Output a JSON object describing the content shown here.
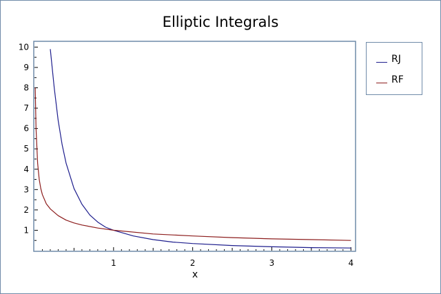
{
  "chart_data": {
    "type": "line",
    "title": "Elliptic Integrals",
    "xlabel": "x",
    "ylabel": "",
    "xlim": [
      0,
      4.05
    ],
    "ylim": [
      0,
      10.25
    ],
    "x_ticks": [
      "1",
      "2",
      "3",
      "4"
    ],
    "y_ticks": [
      "1",
      "2",
      "3",
      "4",
      "5",
      "6",
      "7",
      "8",
      "9",
      "10"
    ],
    "legend_position": "right",
    "series": [
      {
        "name": "RJ",
        "color": "#1c1c8c",
        "x": [
          0.2,
          0.25,
          0.3,
          0.35,
          0.4,
          0.5,
          0.6,
          0.7,
          0.8,
          0.9,
          1.0,
          1.25,
          1.5,
          1.75,
          2.0,
          2.5,
          3.0,
          3.5,
          4.0
        ],
        "y": [
          9.9,
          8.0,
          6.4,
          5.2,
          4.3,
          3.05,
          2.28,
          1.75,
          1.4,
          1.15,
          1.0,
          0.72,
          0.54,
          0.42,
          0.35,
          0.25,
          0.19,
          0.15,
          0.13
        ]
      },
      {
        "name": "RF",
        "color": "#8c1c1c",
        "x": [
          0.01,
          0.02,
          0.04,
          0.06,
          0.08,
          0.1,
          0.15,
          0.2,
          0.3,
          0.4,
          0.5,
          0.6,
          0.8,
          1.0,
          1.5,
          2.0,
          2.5,
          3.0,
          3.5,
          4.0
        ],
        "y": [
          8.0,
          6.0,
          4.3,
          3.5,
          3.05,
          2.75,
          2.3,
          2.05,
          1.72,
          1.5,
          1.36,
          1.26,
          1.11,
          1.0,
          0.82,
          0.72,
          0.64,
          0.58,
          0.54,
          0.5
        ]
      }
    ]
  }
}
